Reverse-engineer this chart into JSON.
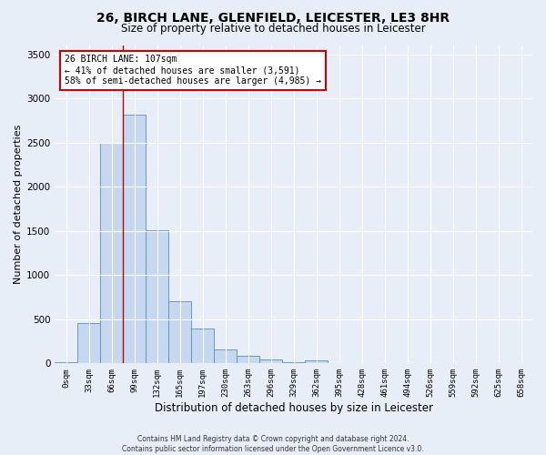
{
  "title_line1": "26, BIRCH LANE, GLENFIELD, LEICESTER, LE3 8HR",
  "title_line2": "Size of property relative to detached houses in Leicester",
  "xlabel": "Distribution of detached houses by size in Leicester",
  "ylabel": "Number of detached properties",
  "bar_labels": [
    "0sqm",
    "33sqm",
    "66sqm",
    "99sqm",
    "132sqm",
    "165sqm",
    "197sqm",
    "230sqm",
    "263sqm",
    "296sqm",
    "329sqm",
    "362sqm",
    "395sqm",
    "428sqm",
    "461sqm",
    "494sqm",
    "526sqm",
    "559sqm",
    "592sqm",
    "625sqm",
    "658sqm"
  ],
  "bar_values": [
    10,
    460,
    2500,
    2820,
    1510,
    700,
    395,
    155,
    90,
    45,
    10,
    35,
    5,
    5,
    0,
    0,
    0,
    0,
    0,
    0,
    0
  ],
  "bar_color": "#c5d8ef",
  "bar_edge_color": "#5b8db8",
  "vline_bin_index": 3,
  "vline_color": "#cc0000",
  "annotation_title": "26 BIRCH LANE: 107sqm",
  "annotation_line2": "← 41% of detached houses are smaller (3,591)",
  "annotation_line3": "58% of semi-detached houses are larger (4,985) →",
  "annotation_box_color": "#cc0000",
  "ylim": [
    0,
    3600
  ],
  "yticks": [
    0,
    500,
    1000,
    1500,
    2000,
    2500,
    3000,
    3500
  ],
  "footnote_line1": "Contains HM Land Registry data © Crown copyright and database right 2024.",
  "footnote_line2": "Contains public sector information licensed under the Open Government Licence v3.0.",
  "bg_color": "#e8eef8",
  "plot_bg_color": "#e8eef8",
  "grid_color": "#ffffff"
}
